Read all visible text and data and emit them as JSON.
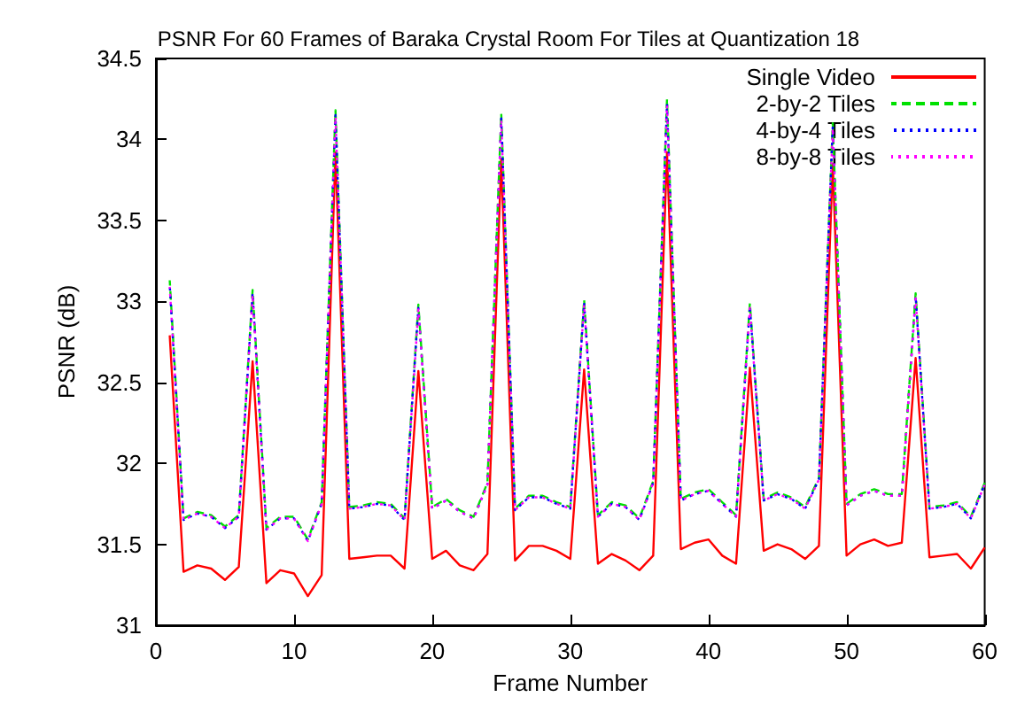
{
  "chart_data": {
    "type": "line",
    "title": "PSNR For 60 Frames of Baraka Crystal Room For Tiles at Quantization 18",
    "xlabel": "Frame Number",
    "ylabel": "PSNR (dB)",
    "x": [
      1,
      2,
      3,
      4,
      5,
      6,
      7,
      8,
      9,
      10,
      11,
      12,
      13,
      14,
      15,
      16,
      17,
      18,
      19,
      20,
      21,
      22,
      23,
      24,
      25,
      26,
      27,
      28,
      29,
      30,
      31,
      32,
      33,
      34,
      35,
      36,
      37,
      38,
      39,
      40,
      41,
      42,
      43,
      44,
      45,
      46,
      47,
      48,
      49,
      50,
      51,
      52,
      53,
      54,
      55,
      56,
      57,
      58,
      59,
      60
    ],
    "series": [
      {
        "name": "Single Video",
        "color": "#ff0000",
        "line_style": "solid",
        "values": [
          32.79,
          31.33,
          31.37,
          31.35,
          31.28,
          31.36,
          32.63,
          31.26,
          31.34,
          31.32,
          31.18,
          31.31,
          33.92,
          31.41,
          31.42,
          31.43,
          31.43,
          31.35,
          32.57,
          31.41,
          31.46,
          31.37,
          31.34,
          31.44,
          33.88,
          31.4,
          31.49,
          31.49,
          31.46,
          31.41,
          32.58,
          31.38,
          31.44,
          31.4,
          31.34,
          31.43,
          33.92,
          31.47,
          31.51,
          31.53,
          31.43,
          31.38,
          32.59,
          31.46,
          31.5,
          31.47,
          31.41,
          31.49,
          33.85,
          31.43,
          31.5,
          31.53,
          31.49,
          31.51,
          32.65,
          31.42,
          31.43,
          31.44,
          31.35,
          31.48
        ]
      },
      {
        "name": "2-by-2 Tiles",
        "color": "#00e000",
        "line_style": "dashed",
        "values": [
          33.13,
          31.66,
          31.7,
          31.68,
          31.61,
          31.68,
          33.07,
          31.6,
          31.67,
          31.67,
          31.53,
          31.76,
          34.18,
          31.73,
          31.74,
          31.76,
          31.75,
          31.66,
          32.98,
          31.73,
          31.78,
          31.71,
          31.67,
          31.88,
          34.16,
          31.72,
          31.8,
          31.8,
          31.76,
          31.73,
          33.01,
          31.68,
          31.76,
          31.74,
          31.66,
          31.89,
          34.25,
          31.78,
          31.82,
          31.84,
          31.76,
          31.68,
          32.99,
          31.78,
          31.82,
          31.79,
          31.73,
          31.91,
          34.1,
          31.75,
          31.81,
          31.84,
          31.81,
          31.81,
          33.05,
          31.73,
          31.74,
          31.76,
          31.67,
          31.88
        ]
      },
      {
        "name": "4-by-4 Tiles",
        "color": "#0000ff",
        "line_style": "dotted",
        "values": [
          33.1,
          31.65,
          31.69,
          31.67,
          31.6,
          31.67,
          33.05,
          31.59,
          31.66,
          31.66,
          31.52,
          31.75,
          34.15,
          31.72,
          31.73,
          31.75,
          31.74,
          31.65,
          32.96,
          31.72,
          31.77,
          31.7,
          31.66,
          31.87,
          34.13,
          31.71,
          31.79,
          31.79,
          31.75,
          31.72,
          32.99,
          31.67,
          31.75,
          31.73,
          31.65,
          31.88,
          34.22,
          31.77,
          31.81,
          31.83,
          31.75,
          31.67,
          32.97,
          31.77,
          31.81,
          31.78,
          31.72,
          31.9,
          34.08,
          31.74,
          31.8,
          31.83,
          31.8,
          31.8,
          33.03,
          31.72,
          31.73,
          31.75,
          31.66,
          31.87
        ]
      },
      {
        "name": "8-by-8 Tiles",
        "color": "#ff00ff",
        "line_style": "dotted",
        "values": [
          33.09,
          31.65,
          31.69,
          31.67,
          31.6,
          31.67,
          33.04,
          31.59,
          31.66,
          31.66,
          31.52,
          31.75,
          34.14,
          31.72,
          31.73,
          31.75,
          31.74,
          31.65,
          32.95,
          31.72,
          31.77,
          31.7,
          31.66,
          31.87,
          34.12,
          31.71,
          31.79,
          31.79,
          31.75,
          31.72,
          32.98,
          31.67,
          31.75,
          31.73,
          31.65,
          31.88,
          34.21,
          31.77,
          31.81,
          31.83,
          31.75,
          31.67,
          32.96,
          31.77,
          31.81,
          31.78,
          31.72,
          31.9,
          34.07,
          31.74,
          31.8,
          31.83,
          31.8,
          31.8,
          33.02,
          31.72,
          31.73,
          31.75,
          31.66,
          31.87
        ]
      }
    ],
    "xlim": [
      0,
      60
    ],
    "xticks": [
      0,
      10,
      20,
      30,
      40,
      50,
      60
    ],
    "ylim": [
      31,
      34.5
    ],
    "yticks": [
      31,
      31.5,
      32,
      32.5,
      33,
      33.5,
      34,
      34.5
    ],
    "grid": false,
    "legend": "top right",
    "marker": "none"
  }
}
